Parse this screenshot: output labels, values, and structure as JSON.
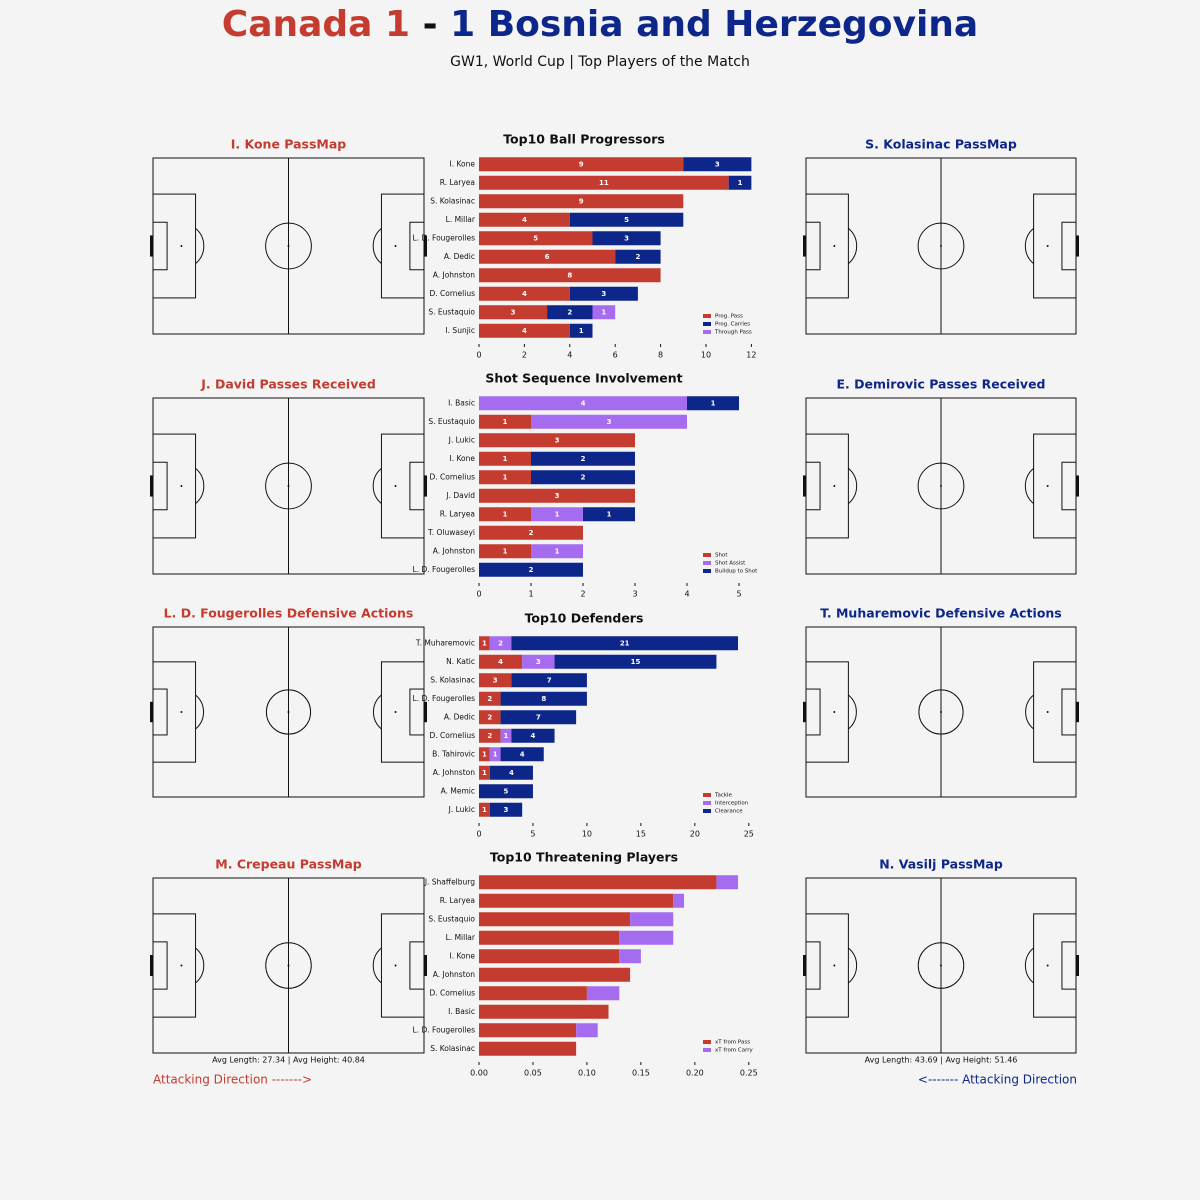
{
  "header": {
    "home": "Canada 1",
    "sep": "-",
    "away": "1 Bosnia and Herzegovina",
    "subtitle": "GW1, World Cup | Top Players of the Match"
  },
  "pitches": [
    {
      "title": "I. Kone PassMap"
    },
    {
      "title": "S. Kolasinac PassMap"
    },
    {
      "title": "J. David Passes Received"
    },
    {
      "title": "E. Demirovic Passes Received"
    },
    {
      "title": "L. D. Fougerolles Defensive Actions"
    },
    {
      "title": "T. Muharemovic Defensive Actions"
    },
    {
      "title": "M. Crepeau PassMap",
      "note": "Avg Length: 27.34  |  Avg Height: 40.84"
    },
    {
      "title": "N. Vasilj PassMap",
      "note": "Avg Length: 43.69  |  Avg Height: 51.46"
    }
  ],
  "chart_data": [
    {
      "type": "bar",
      "title": "Top10 Ball Progressors",
      "categories": [
        "I. Kone",
        "R. Laryea",
        "S. Kolasinac",
        "L. Millar",
        "L. D. Fougerolles",
        "A. Dedic",
        "A. Johnston",
        "D. Cornelius",
        "S. Eustaquio",
        "I. Sunjic"
      ],
      "series": [
        {
          "name": "Prog. Pass",
          "color": "#c43b2f",
          "values": [
            9,
            11,
            9,
            4,
            5,
            6,
            8,
            4,
            3,
            4
          ]
        },
        {
          "name": "Prog. Carries",
          "color": "#0d2689",
          "values": [
            3,
            1,
            0,
            5,
            3,
            2,
            0,
            3,
            2,
            1
          ]
        },
        {
          "name": "Through Pass",
          "color": "#a66cf0",
          "values": [
            0,
            0,
            0,
            0,
            0,
            0,
            0,
            0,
            1,
            0
          ]
        }
      ],
      "xlim": [
        0,
        12.6
      ],
      "xticks": [
        0,
        2,
        4,
        6,
        8,
        10,
        12
      ]
    },
    {
      "type": "bar",
      "title": "Shot Sequence Involvement",
      "categories": [
        "I. Basic",
        "S. Eustaquio",
        "J. Lukic",
        "I. Kone",
        "D. Cornelius",
        "J. David",
        "R. Laryea",
        "T. Oluwaseyi",
        "A. Johnston",
        "L. D. Fougerolles"
      ],
      "series": [
        {
          "name": "Shot",
          "color": "#c43b2f",
          "values": [
            0,
            1,
            3,
            1,
            1,
            3,
            1,
            2,
            1,
            0
          ]
        },
        {
          "name": "Shot Assist",
          "color": "#a66cf0",
          "values": [
            4,
            3,
            0,
            0,
            0,
            0,
            1,
            0,
            1,
            0
          ]
        },
        {
          "name": "Buildup to Shot",
          "color": "#0d2689",
          "values": [
            1,
            0,
            0,
            2,
            2,
            0,
            1,
            0,
            0,
            2
          ]
        }
      ],
      "xlim": [
        0,
        5.5
      ],
      "xticks": [
        0,
        1,
        2,
        3,
        4,
        5
      ]
    },
    {
      "type": "bar",
      "title": "Top10 Defenders",
      "categories": [
        "T. Muharemovic",
        "N. Katic",
        "S. Kolasinac",
        "L. D. Fougerolles",
        "A. Dedic",
        "D. Cornelius",
        "B. Tahirovic",
        "A. Johnston",
        "A. Memic",
        "J. Lukic"
      ],
      "series": [
        {
          "name": "Tackle",
          "color": "#c43b2f",
          "values": [
            1,
            4,
            3,
            2,
            2,
            2,
            1,
            1,
            0,
            1
          ]
        },
        {
          "name": "Interception",
          "color": "#a66cf0",
          "values": [
            2,
            3,
            0,
            0,
            0,
            1,
            1,
            0,
            0,
            0
          ]
        },
        {
          "name": "Clearance",
          "color": "#0d2689",
          "values": [
            21,
            15,
            7,
            8,
            7,
            4,
            4,
            4,
            5,
            3
          ]
        }
      ],
      "xlim": [
        0,
        26.5
      ],
      "xticks": [
        0,
        5,
        10,
        15,
        20,
        25
      ]
    },
    {
      "type": "bar",
      "title": "Top10 Threatening Players",
      "categories": [
        "J. Shaffelburg",
        "R. Laryea",
        "S. Eustaquio",
        "L. Millar",
        "I. Kone",
        "A. Johnston",
        "D. Cornelius",
        "I. Basic",
        "L. D. Fougerolles",
        "S. Kolasinac"
      ],
      "series": [
        {
          "name": "xT from Pass",
          "color": "#c43b2f",
          "values": [
            0.22,
            0.18,
            0.14,
            0.13,
            0.13,
            0.14,
            0.1,
            0.12,
            0.09,
            0.09
          ]
        },
        {
          "name": "xT from Carry",
          "color": "#a66cf0",
          "values": [
            0.02,
            0.01,
            0.04,
            0.05,
            0.02,
            0,
            0.03,
            0,
            0.02,
            0
          ]
        }
      ],
      "xlim": [
        0,
        0.265
      ],
      "xticks": [
        {
          "value": 0,
          "label": "0.00"
        },
        0.05,
        {
          "value": 0.1,
          "label": "0.10"
        },
        0.15,
        {
          "value": 0.2,
          "label": "0.20"
        },
        0.25
      ],
      "show_values": false
    }
  ],
  "footer": {
    "home_direction": "Attacking Direction ------->",
    "away_direction": "<------- Attacking Direction"
  }
}
